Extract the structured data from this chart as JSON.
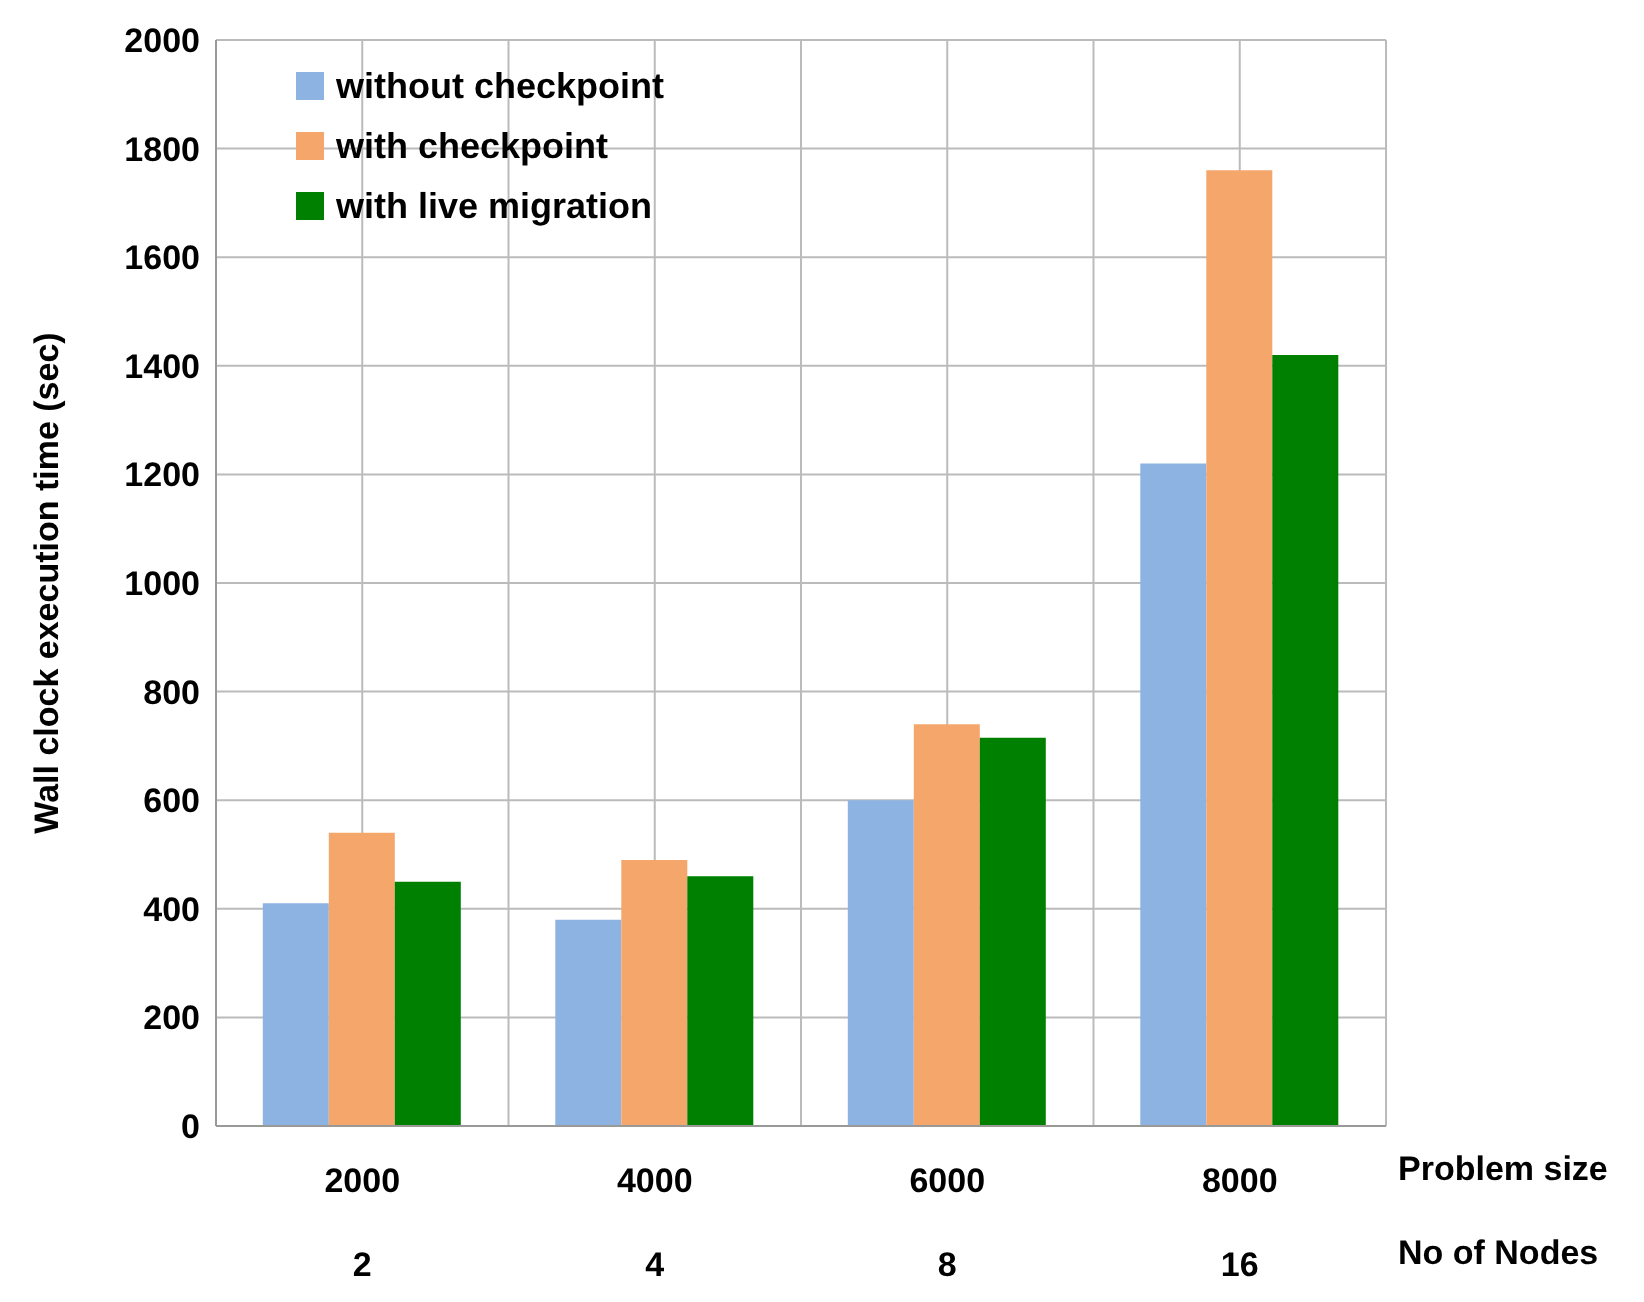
{
  "chart_data": {
    "type": "bar",
    "ylabel": "Wall clock execution time (sec)",
    "xlabel": "Problem size",
    "categories": [
      "2000",
      "4000",
      "6000",
      "8000"
    ],
    "series": [
      {
        "name": "without checkpoint",
        "color": "#8db3e2",
        "values": [
          410,
          380,
          600,
          1220
        ]
      },
      {
        "name": "with checkpoint",
        "color": "#f5a66b",
        "values": [
          540,
          490,
          740,
          1760
        ]
      },
      {
        "name": "with live migration",
        "color": "#008000",
        "values": [
          450,
          460,
          715,
          1420
        ]
      }
    ],
    "ylim": [
      0,
      2000
    ],
    "yticks": [
      0,
      200,
      400,
      600,
      800,
      1000,
      1200,
      1400,
      1600,
      1800,
      2000
    ],
    "grid": true,
    "legend": "top left",
    "annotations": [
      "No of Nodes",
      "2",
      "4",
      "8",
      "16"
    ]
  }
}
